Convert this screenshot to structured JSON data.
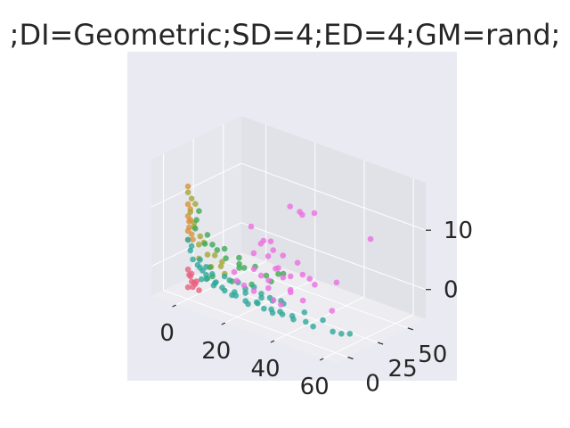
{
  "chart_data": {
    "type": "scatter",
    "projection": "3d",
    "title": ";DI=Geometric;SD=4;ED=4;GM=rand;",
    "xlabel": "",
    "ylabel": "",
    "zlabel": "",
    "xlim": [
      -10,
      65
    ],
    "ylim": [
      -10,
      65
    ],
    "zlim": [
      -5,
      18
    ],
    "xticks": [
      "0",
      "20",
      "40",
      "60"
    ],
    "yticks": [
      "0",
      "25",
      "50"
    ],
    "zticks": [
      "0",
      "10"
    ],
    "grid": true,
    "colors": {
      "pane_back": "#e1e1e8",
      "pane_side": "#e6e6ed",
      "pane_floor": "#ececf1",
      "axes_background": "#eaeaf2",
      "grid": "#ffffff",
      "text": "#262626",
      "orange": "#d9923b",
      "olive": "#a3a835",
      "green": "#3eaa55",
      "teal": "#2fa99a",
      "pink": "#ee6ee0",
      "red": "#e8637f"
    },
    "series": [
      {
        "color": "#d9923b",
        "points": [
          [
            0,
            0,
            14
          ],
          [
            0,
            0,
            11
          ],
          [
            0,
            2,
            10
          ],
          [
            0,
            0,
            9
          ],
          [
            0,
            1,
            8
          ],
          [
            1,
            0,
            8.5
          ],
          [
            0,
            1,
            7
          ],
          [
            1,
            1,
            6
          ],
          [
            0,
            0,
            6.5
          ],
          [
            1,
            2,
            5
          ],
          [
            0,
            0,
            5
          ]
        ]
      },
      {
        "color": "#a3a835",
        "points": [
          [
            0,
            0,
            13
          ],
          [
            1,
            1,
            12
          ],
          [
            3,
            0,
            11.5
          ],
          [
            0,
            2,
            9.5
          ],
          [
            2,
            1,
            8
          ],
          [
            1,
            3,
            7
          ],
          [
            4,
            2,
            6
          ],
          [
            5,
            3,
            5
          ],
          [
            2,
            5,
            4
          ],
          [
            6,
            4,
            3
          ],
          [
            3,
            3,
            2
          ],
          [
            8,
            6,
            3
          ],
          [
            10,
            8,
            2
          ],
          [
            7,
            5,
            1
          ],
          [
            9,
            9,
            1
          ],
          [
            12,
            6,
            0.5
          ]
        ]
      },
      {
        "color": "#3eaa55",
        "points": [
          [
            3,
            3,
            10
          ],
          [
            1,
            5,
            8
          ],
          [
            2,
            2,
            7
          ],
          [
            5,
            6,
            6
          ],
          [
            8,
            4,
            5
          ],
          [
            3,
            8,
            4
          ],
          [
            10,
            10,
            4
          ],
          [
            12,
            7,
            3
          ],
          [
            6,
            12,
            3
          ],
          [
            15,
            12,
            2
          ],
          [
            18,
            10,
            2
          ],
          [
            20,
            15,
            2
          ],
          [
            24,
            16,
            1
          ],
          [
            14,
            14,
            1
          ],
          [
            9,
            2,
            0
          ],
          [
            16,
            4,
            0
          ],
          [
            22,
            8,
            0
          ],
          [
            28,
            12,
            1
          ],
          [
            12,
            18,
            2
          ],
          [
            30,
            18,
            2
          ],
          [
            26,
            22,
            1
          ],
          [
            4,
            10,
            0
          ],
          [
            6,
            4,
            -1
          ]
        ]
      },
      {
        "color": "#2fa99a",
        "points": [
          [
            0,
            0,
            5
          ],
          [
            1,
            1,
            4
          ],
          [
            0,
            2,
            3
          ],
          [
            2,
            0,
            2
          ],
          [
            3,
            2,
            1
          ],
          [
            4,
            4,
            0
          ],
          [
            5,
            1,
            -1
          ],
          [
            6,
            3,
            -1
          ],
          [
            8,
            5,
            -2
          ],
          [
            10,
            2,
            -1
          ],
          [
            11,
            6,
            -2
          ],
          [
            13,
            4,
            -2
          ],
          [
            14,
            8,
            -3
          ],
          [
            16,
            6,
            -2
          ],
          [
            18,
            3,
            -2
          ],
          [
            20,
            7,
            -3
          ],
          [
            22,
            5,
            -3
          ],
          [
            24,
            9,
            -3
          ],
          [
            26,
            4,
            -2
          ],
          [
            28,
            6,
            -3
          ],
          [
            30,
            8,
            -3
          ],
          [
            32,
            5,
            -3
          ],
          [
            35,
            7,
            -3
          ],
          [
            38,
            9,
            -3
          ],
          [
            40,
            6,
            -3
          ],
          [
            44,
            8,
            -3
          ],
          [
            48,
            6,
            -3
          ],
          [
            50,
            10,
            -2
          ],
          [
            55,
            8,
            -3
          ],
          [
            58,
            9,
            -3
          ],
          [
            60,
            12,
            -3
          ],
          [
            36,
            3,
            -2
          ],
          [
            42,
            11,
            -2
          ],
          [
            7,
            9,
            -2
          ],
          [
            9,
            12,
            -1
          ],
          [
            12,
            10,
            -1
          ],
          [
            15,
            11,
            -1
          ],
          [
            17,
            13,
            -2
          ],
          [
            19,
            9,
            -2
          ],
          [
            21,
            12,
            -1
          ],
          [
            23,
            14,
            -2
          ],
          [
            25,
            10,
            -2
          ],
          [
            27,
            13,
            -2
          ],
          [
            29,
            11,
            -2
          ],
          [
            31,
            14,
            -2
          ],
          [
            33,
            12,
            -2
          ],
          [
            2,
            6,
            0
          ],
          [
            4,
            7,
            -1
          ],
          [
            3,
            9,
            0
          ],
          [
            5,
            10,
            -1
          ],
          [
            1,
            8,
            1
          ]
        ]
      },
      {
        "color": "#ee6ee0",
        "points": [
          [
            22,
            40,
            10
          ],
          [
            26,
            42,
            9
          ],
          [
            28,
            48,
            9
          ],
          [
            24,
            44,
            9
          ],
          [
            45,
            60,
            6
          ],
          [
            14,
            24,
            7
          ],
          [
            18,
            26,
            5
          ],
          [
            20,
            28,
            5
          ],
          [
            22,
            26,
            4
          ],
          [
            16,
            22,
            3
          ],
          [
            24,
            30,
            3
          ],
          [
            26,
            22,
            2
          ],
          [
            28,
            34,
            2
          ],
          [
            30,
            24,
            1
          ],
          [
            32,
            30,
            1
          ],
          [
            18,
            18,
            1
          ],
          [
            20,
            20,
            0
          ],
          [
            24,
            18,
            0
          ],
          [
            30,
            40,
            -1
          ],
          [
            38,
            46,
            -1
          ],
          [
            34,
            36,
            -1
          ],
          [
            28,
            28,
            -2
          ],
          [
            22,
            22,
            -2
          ],
          [
            26,
            18,
            -3
          ],
          [
            15,
            16,
            -2
          ],
          [
            20,
            14,
            -2
          ],
          [
            14,
            12,
            -1
          ],
          [
            12,
            14,
            0
          ],
          [
            32,
            20,
            -1
          ],
          [
            36,
            22,
            -2
          ],
          [
            42,
            34,
            -4
          ],
          [
            30,
            16,
            -3
          ],
          [
            26,
            26,
            0
          ],
          [
            20,
            32,
            0
          ],
          [
            18,
            30,
            2
          ],
          [
            16,
            28,
            4
          ]
        ]
      },
      {
        "color": "#e8637f",
        "points": [
          [
            0,
            0,
            0
          ],
          [
            1,
            0,
            -1
          ],
          [
            0,
            1,
            -1
          ],
          [
            2,
            1,
            -2
          ],
          [
            1,
            2,
            -3
          ],
          [
            3,
            0,
            -2
          ],
          [
            0,
            3,
            -1
          ],
          [
            2,
            3,
            -2
          ],
          [
            4,
            1,
            -3
          ],
          [
            0,
            0,
            -3
          ],
          [
            1,
            1,
            -2
          ]
        ]
      }
    ]
  }
}
